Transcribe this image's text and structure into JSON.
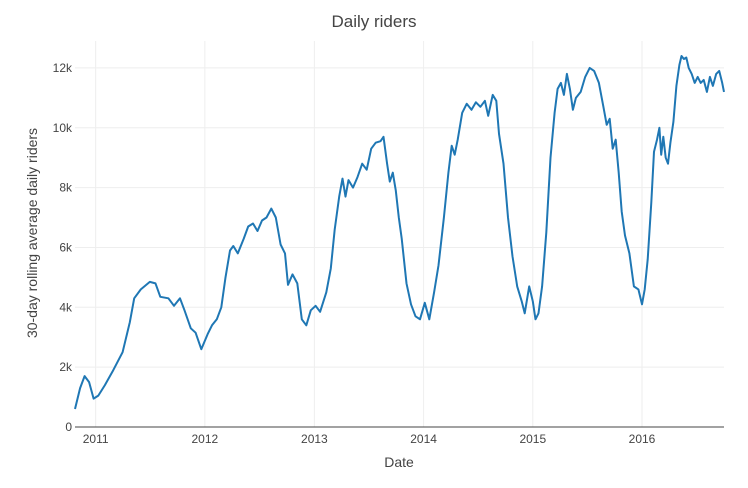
{
  "chart_data": {
    "type": "line",
    "title": "Daily riders",
    "xlabel": "Date",
    "ylabel": "30-day rolling average daily riders",
    "x_range": [
      "2010-10-24",
      "2016-10-01"
    ],
    "ylim": [
      0,
      12900
    ],
    "x_ticks": [
      {
        "date": "2011-01-01",
        "label": "2011"
      },
      {
        "date": "2012-01-01",
        "label": "2012"
      },
      {
        "date": "2013-01-01",
        "label": "2013"
      },
      {
        "date": "2014-01-01",
        "label": "2014"
      },
      {
        "date": "2015-01-01",
        "label": "2015"
      },
      {
        "date": "2016-01-01",
        "label": "2016"
      }
    ],
    "y_ticks": [
      {
        "value": 0,
        "label": "0"
      },
      {
        "value": 2000,
        "label": "2k"
      },
      {
        "value": 4000,
        "label": "4k"
      },
      {
        "value": 6000,
        "label": "6k"
      },
      {
        "value": 8000,
        "label": "8k"
      },
      {
        "value": 10000,
        "label": "10k"
      },
      {
        "value": 12000,
        "label": "12k"
      }
    ],
    "grid": true,
    "line_color": "#1f77b4",
    "series": [
      {
        "points": [
          [
            "2010-10-24",
            600
          ],
          [
            "2010-11-10",
            1300
          ],
          [
            "2010-11-25",
            1700
          ],
          [
            "2010-12-10",
            1500
          ],
          [
            "2010-12-25",
            950
          ],
          [
            "2011-01-10",
            1050
          ],
          [
            "2011-02-01",
            1400
          ],
          [
            "2011-03-01",
            1900
          ],
          [
            "2011-04-01",
            2500
          ],
          [
            "2011-04-25",
            3500
          ],
          [
            "2011-05-10",
            4300
          ],
          [
            "2011-06-01",
            4600
          ],
          [
            "2011-07-01",
            4850
          ],
          [
            "2011-07-20",
            4800
          ],
          [
            "2011-08-05",
            4350
          ],
          [
            "2011-09-01",
            4300
          ],
          [
            "2011-09-20",
            4050
          ],
          [
            "2011-10-10",
            4300
          ],
          [
            "2011-10-25",
            3900
          ],
          [
            "2011-11-15",
            3300
          ],
          [
            "2011-12-01",
            3150
          ],
          [
            "2011-12-20",
            2600
          ],
          [
            "2012-01-10",
            3100
          ],
          [
            "2012-01-25",
            3400
          ],
          [
            "2012-02-10",
            3600
          ],
          [
            "2012-02-25",
            4000
          ],
          [
            "2012-03-10",
            5000
          ],
          [
            "2012-03-25",
            5900
          ],
          [
            "2012-04-05",
            6050
          ],
          [
            "2012-04-20",
            5800
          ],
          [
            "2012-05-10",
            6300
          ],
          [
            "2012-05-25",
            6700
          ],
          [
            "2012-06-10",
            6800
          ],
          [
            "2012-06-25",
            6550
          ],
          [
            "2012-07-10",
            6900
          ],
          [
            "2012-07-25",
            7000
          ],
          [
            "2012-08-10",
            7300
          ],
          [
            "2012-08-25",
            7000
          ],
          [
            "2012-09-10",
            6100
          ],
          [
            "2012-09-25",
            5800
          ],
          [
            "2012-10-05",
            4750
          ],
          [
            "2012-10-20",
            5100
          ],
          [
            "2012-11-05",
            4800
          ],
          [
            "2012-11-20",
            3600
          ],
          [
            "2012-12-05",
            3400
          ],
          [
            "2012-12-20",
            3900
          ],
          [
            "2013-01-05",
            4050
          ],
          [
            "2013-01-20",
            3850
          ],
          [
            "2013-02-10",
            4500
          ],
          [
            "2013-02-25",
            5300
          ],
          [
            "2013-03-10",
            6600
          ],
          [
            "2013-03-25",
            7700
          ],
          [
            "2013-04-05",
            8300
          ],
          [
            "2013-04-15",
            7700
          ],
          [
            "2013-04-25",
            8250
          ],
          [
            "2013-05-10",
            8000
          ],
          [
            "2013-05-25",
            8350
          ],
          [
            "2013-06-10",
            8800
          ],
          [
            "2013-06-25",
            8600
          ],
          [
            "2013-07-10",
            9300
          ],
          [
            "2013-07-25",
            9500
          ],
          [
            "2013-08-10",
            9550
          ],
          [
            "2013-08-20",
            9700
          ],
          [
            "2013-09-01",
            8800
          ],
          [
            "2013-09-10",
            8200
          ],
          [
            "2013-09-20",
            8500
          ],
          [
            "2013-09-30",
            7900
          ],
          [
            "2013-10-10",
            7000
          ],
          [
            "2013-10-20",
            6300
          ],
          [
            "2013-11-05",
            4800
          ],
          [
            "2013-11-20",
            4100
          ],
          [
            "2013-12-05",
            3700
          ],
          [
            "2013-12-20",
            3600
          ],
          [
            "2014-01-05",
            4150
          ],
          [
            "2014-01-20",
            3600
          ],
          [
            "2014-02-05",
            4500
          ],
          [
            "2014-02-20",
            5400
          ],
          [
            "2014-03-10",
            7000
          ],
          [
            "2014-03-25",
            8500
          ],
          [
            "2014-04-05",
            9400
          ],
          [
            "2014-04-15",
            9100
          ],
          [
            "2014-04-25",
            9600
          ],
          [
            "2014-05-10",
            10500
          ],
          [
            "2014-05-25",
            10800
          ],
          [
            "2014-06-10",
            10600
          ],
          [
            "2014-06-25",
            10850
          ],
          [
            "2014-07-10",
            10700
          ],
          [
            "2014-07-25",
            10900
          ],
          [
            "2014-08-05",
            10400
          ],
          [
            "2014-08-20",
            11100
          ],
          [
            "2014-09-01",
            10900
          ],
          [
            "2014-09-10",
            9800
          ],
          [
            "2014-09-25",
            8800
          ],
          [
            "2014-10-10",
            7000
          ],
          [
            "2014-10-25",
            5700
          ],
          [
            "2014-11-10",
            4700
          ],
          [
            "2014-11-25",
            4200
          ],
          [
            "2014-12-05",
            3800
          ],
          [
            "2014-12-20",
            4700
          ],
          [
            "2015-01-01",
            4200
          ],
          [
            "2015-01-10",
            3600
          ],
          [
            "2015-01-20",
            3800
          ],
          [
            "2015-02-01",
            4700
          ],
          [
            "2015-02-15",
            6500
          ],
          [
            "2015-03-01",
            9000
          ],
          [
            "2015-03-15",
            10500
          ],
          [
            "2015-03-25",
            11300
          ],
          [
            "2015-04-05",
            11500
          ],
          [
            "2015-04-15",
            11100
          ],
          [
            "2015-04-25",
            11800
          ],
          [
            "2015-05-05",
            11300
          ],
          [
            "2015-05-15",
            10600
          ],
          [
            "2015-05-25",
            11000
          ],
          [
            "2015-06-10",
            11200
          ],
          [
            "2015-06-25",
            11700
          ],
          [
            "2015-07-10",
            12000
          ],
          [
            "2015-07-25",
            11900
          ],
          [
            "2015-08-10",
            11500
          ],
          [
            "2015-08-25",
            10700
          ],
          [
            "2015-09-05",
            10100
          ],
          [
            "2015-09-15",
            10300
          ],
          [
            "2015-09-25",
            9300
          ],
          [
            "2015-10-05",
            9600
          ],
          [
            "2015-10-15",
            8500
          ],
          [
            "2015-10-25",
            7200
          ],
          [
            "2015-11-05",
            6400
          ],
          [
            "2015-11-20",
            5800
          ],
          [
            "2015-12-05",
            4700
          ],
          [
            "2015-12-20",
            4600
          ],
          [
            "2016-01-01",
            4100
          ],
          [
            "2016-01-10",
            4600
          ],
          [
            "2016-01-20",
            5600
          ],
          [
            "2016-02-01",
            7500
          ],
          [
            "2016-02-10",
            9200
          ],
          [
            "2016-02-20",
            9600
          ],
          [
            "2016-02-28",
            10000
          ],
          [
            "2016-03-05",
            9100
          ],
          [
            "2016-03-12",
            9700
          ],
          [
            "2016-03-20",
            9000
          ],
          [
            "2016-03-28",
            8800
          ],
          [
            "2016-04-05",
            9500
          ],
          [
            "2016-04-15",
            10200
          ],
          [
            "2016-04-25",
            11400
          ],
          [
            "2016-05-05",
            12100
          ],
          [
            "2016-05-12",
            12400
          ],
          [
            "2016-05-20",
            12300
          ],
          [
            "2016-05-28",
            12350
          ],
          [
            "2016-06-05",
            12000
          ],
          [
            "2016-06-15",
            11800
          ],
          [
            "2016-06-25",
            11500
          ],
          [
            "2016-07-05",
            11700
          ],
          [
            "2016-07-15",
            11500
          ],
          [
            "2016-07-25",
            11600
          ],
          [
            "2016-08-05",
            11200
          ],
          [
            "2016-08-15",
            11700
          ],
          [
            "2016-08-25",
            11400
          ],
          [
            "2016-09-05",
            11800
          ],
          [
            "2016-09-15",
            11900
          ],
          [
            "2016-09-25",
            11500
          ],
          [
            "2016-10-01",
            11200
          ]
        ]
      }
    ]
  }
}
